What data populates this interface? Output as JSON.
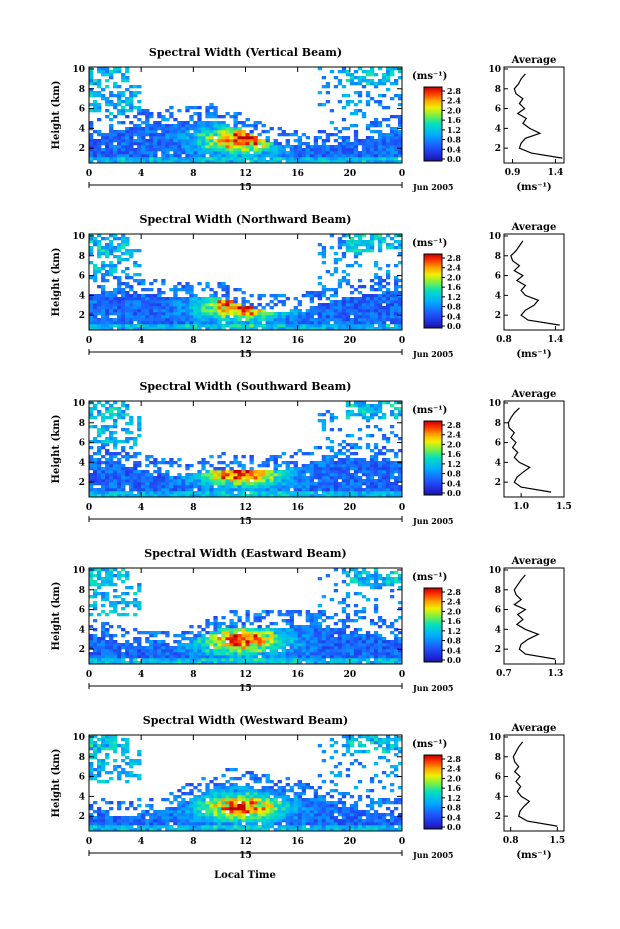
{
  "figure": {
    "x_axis_label": "Local Time",
    "date_label": "Jun 2005",
    "day_label": "15",
    "y_axis_label": "Height (km)",
    "colorbar_unit": "(ms⁻¹)",
    "colorbar_ticks": [
      "2.8",
      "2.4",
      "2.0",
      "1.6",
      "1.2",
      "0.8",
      "0.4",
      "0.0"
    ],
    "avg_title": "Average",
    "avg_xlabel": "(ms⁻¹)",
    "x_ticks": [
      "0",
      "4",
      "8",
      "12",
      "16",
      "20",
      "0"
    ],
    "y_ticks": [
      "2",
      "4",
      "6",
      "8",
      "10"
    ],
    "avg_y_ticks": [
      "2",
      "4",
      "6",
      "8",
      "10"
    ]
  },
  "chart_data": [
    {
      "type": "heatmap",
      "title": "Spectral Width (Vertical Beam)",
      "xlabel": "Local Time",
      "ylabel": "Height (km)",
      "xlim": [
        0,
        24
      ],
      "ylim": [
        0.5,
        10.2
      ],
      "colorbar": {
        "label": "(ms⁻¹)",
        "range": [
          0.0,
          3.0
        ]
      },
      "average_profile": {
        "title": "Average",
        "xlabel": "(ms⁻¹)",
        "xlim": [
          0.8,
          1.5
        ],
        "x_ticks": [
          "0.9",
          "1.4"
        ],
        "height": [
          1.0,
          1.5,
          2.0,
          2.5,
          3.0,
          3.5,
          4.0,
          4.5,
          5.0,
          5.5,
          6.0,
          6.5,
          7.0,
          7.5,
          8.0,
          8.5,
          9.0,
          9.5
        ],
        "width": [
          1.48,
          1.12,
          0.98,
          1.0,
          1.05,
          1.22,
          1.1,
          1.02,
          1.06,
          0.96,
          1.04,
          0.98,
          1.02,
          0.94,
          0.92,
          0.97,
          1.0,
          1.05
        ]
      }
    },
    {
      "type": "heatmap",
      "title": "Spectral Width (Northward Beam)",
      "xlabel": "Local Time",
      "ylabel": "Height (km)",
      "xlim": [
        0,
        24
      ],
      "ylim": [
        0.5,
        10.2
      ],
      "colorbar": {
        "label": "(ms⁻¹)",
        "range": [
          0.0,
          3.0
        ]
      },
      "average_profile": {
        "title": "Average",
        "xlabel": "(ms⁻¹)",
        "xlim": [
          0.8,
          1.5
        ],
        "x_ticks": [
          "0.8",
          "1.4"
        ],
        "height": [
          1.0,
          1.5,
          2.0,
          2.5,
          3.0,
          3.5,
          4.0,
          4.5,
          5.0,
          5.5,
          6.0,
          6.5,
          7.0,
          7.5,
          8.0,
          8.5,
          9.0,
          9.5
        ],
        "width": [
          1.45,
          1.08,
          1.0,
          1.05,
          1.15,
          1.2,
          1.05,
          1.0,
          1.05,
          0.95,
          1.02,
          0.92,
          0.98,
          0.9,
          0.88,
          0.94,
          0.98,
          1.02
        ]
      }
    },
    {
      "type": "heatmap",
      "title": "Spectral Width (Southward Beam)",
      "xlabel": "Local Time",
      "ylabel": "Height (km)",
      "xlim": [
        0,
        24
      ],
      "ylim": [
        0.5,
        10.2
      ],
      "colorbar": {
        "label": "(ms⁻¹)",
        "range": [
          0.0,
          3.0
        ]
      },
      "average_profile": {
        "title": "Average",
        "xlabel": "",
        "xlim": [
          0.8,
          1.5
        ],
        "x_ticks": [
          "1.0",
          "1.5"
        ],
        "height": [
          1.0,
          1.5,
          2.0,
          2.5,
          3.0,
          3.5,
          4.0,
          4.5,
          5.0,
          5.5,
          6.0,
          6.5,
          7.0,
          7.5,
          8.0,
          8.5,
          9.0,
          9.5
        ],
        "width": [
          1.35,
          1.0,
          0.92,
          0.95,
          1.02,
          1.1,
          0.98,
          0.92,
          0.96,
          0.9,
          0.94,
          0.88,
          0.92,
          0.86,
          0.85,
          0.88,
          0.92,
          0.98
        ]
      }
    },
    {
      "type": "heatmap",
      "title": "Spectral Width (Eastward Beam)",
      "xlabel": "Local Time",
      "ylabel": "Height (km)",
      "xlim": [
        0,
        24
      ],
      "ylim": [
        0.5,
        10.2
      ],
      "colorbar": {
        "label": "(ms⁻¹)",
        "range": [
          0.0,
          3.0
        ]
      },
      "average_profile": {
        "title": "Average",
        "xlabel": "",
        "xlim": [
          0.7,
          1.4
        ],
        "x_ticks": [
          "0.7",
          "1.3"
        ],
        "height": [
          1.0,
          1.5,
          2.0,
          2.5,
          3.0,
          3.5,
          4.0,
          4.5,
          5.0,
          5.5,
          6.0,
          6.5,
          7.0,
          7.5,
          8.0,
          8.5,
          9.0,
          9.5
        ],
        "width": [
          1.3,
          0.95,
          0.88,
          0.9,
          0.98,
          1.1,
          0.95,
          0.85,
          0.92,
          0.86,
          0.95,
          0.82,
          0.9,
          0.84,
          0.82,
          0.86,
          0.9,
          0.95
        ]
      }
    },
    {
      "type": "heatmap",
      "title": "Spectral Width (Westward Beam)",
      "xlabel": "Local Time",
      "ylabel": "Height (km)",
      "xlim": [
        0,
        24
      ],
      "ylim": [
        0.5,
        10.2
      ],
      "colorbar": {
        "label": "(ms⁻¹)",
        "range": [
          0.0,
          3.0
        ]
      },
      "average_profile": {
        "title": "Average",
        "xlabel": "(ms⁻¹)",
        "xlim": [
          0.7,
          1.6
        ],
        "x_ticks": [
          "0.8",
          "1.5"
        ],
        "height": [
          1.0,
          1.5,
          2.0,
          2.5,
          3.0,
          3.5,
          4.0,
          4.5,
          5.0,
          5.5,
          6.0,
          6.5,
          7.0,
          7.5,
          8.0,
          8.5,
          9.0,
          9.5
        ],
        "width": [
          1.5,
          1.05,
          0.92,
          0.94,
          1.0,
          1.08,
          0.96,
          0.9,
          0.95,
          0.88,
          0.94,
          0.86,
          0.92,
          0.86,
          0.84,
          0.88,
          0.92,
          0.98
        ]
      }
    }
  ]
}
